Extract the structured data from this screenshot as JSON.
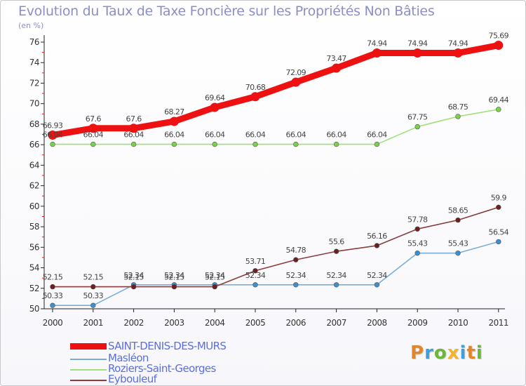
{
  "title": "Evolution du Taux de Taxe Foncière sur les Propriétés Non Bâties",
  "unit": "(en %)",
  "logo": {
    "letters": [
      "P",
      "r",
      "o",
      "x",
      "i",
      "t",
      "i"
    ],
    "colors": [
      "#e2862b",
      "#3f9fd8",
      "#6cb63c",
      "#f0b52a",
      "#3f9fd8",
      "#e2862b",
      "#6cb63c"
    ]
  },
  "chart_data": {
    "type": "line",
    "title": "Evolution du Taux de Taxe Foncière sur les Propriétés Non Bâties",
    "ylabel": "(en %)",
    "xlabel": "",
    "ylim": [
      50,
      76
    ],
    "yticks": [
      50,
      52,
      54,
      56,
      58,
      60,
      62,
      64,
      66,
      68,
      70,
      72,
      74,
      76
    ],
    "grid": false,
    "x": [
      "2000",
      "2001",
      "2002",
      "2003",
      "2004",
      "2005",
      "2006",
      "2007",
      "2008",
      "2009",
      "2010",
      "2011"
    ],
    "series": [
      {
        "name": "SAINT-DENIS-DES-MURS",
        "color": "#ee1111",
        "marker": "#ee1111",
        "thick": true,
        "values": [
          66.93,
          67.6,
          67.6,
          68.27,
          69.64,
          70.68,
          72.09,
          73.47,
          74.94,
          74.94,
          74.94,
          75.69
        ],
        "labels": [
          "66.93",
          "67.6",
          "67.6",
          "68.27",
          "69.64",
          "70.68",
          "72.09",
          "73.47",
          "74.94",
          "74.94",
          "74.94",
          "75.69"
        ]
      },
      {
        "name": "Masléon",
        "color": "#7aaed6",
        "marker": "#3d8fcf",
        "thick": false,
        "values": [
          50.33,
          50.33,
          52.34,
          52.34,
          52.34,
          52.34,
          52.34,
          52.34,
          52.34,
          55.43,
          55.43,
          56.54
        ],
        "labels": [
          "50.33",
          "50.33",
          "52.34",
          "52.34",
          "52.34",
          "52.34",
          "52.34",
          "52.34",
          "52.34",
          "55.43",
          "55.43",
          "56.54"
        ]
      },
      {
        "name": "Roziers-Saint-Georges",
        "color": "#9fe07a",
        "marker": "#7ad14a",
        "thick": false,
        "values": [
          66.04,
          66.04,
          66.04,
          66.04,
          66.04,
          66.04,
          66.04,
          66.04,
          66.04,
          67.75,
          68.75,
          69.44
        ],
        "labels": [
          "66.04",
          "66.04",
          "66.04",
          "66.04",
          "66.04",
          "66.04",
          "66.04",
          "66.04",
          "66.04",
          "67.75",
          "68.75",
          "69.44"
        ]
      },
      {
        "name": "Eybouleuf",
        "color": "#8a3d3d",
        "marker": "#6b1f1f",
        "thick": false,
        "values": [
          52.15,
          52.15,
          52.15,
          52.15,
          52.15,
          53.71,
          54.78,
          55.6,
          56.16,
          57.78,
          58.65,
          59.9
        ],
        "labels": [
          "52.15",
          "52.15",
          "52.15",
          "52.15",
          "52.15",
          "53.71",
          "54.78",
          "55.6",
          "56.16",
          "57.78",
          "58.65",
          "59.9"
        ]
      }
    ],
    "legend_position": "bottom-left"
  }
}
